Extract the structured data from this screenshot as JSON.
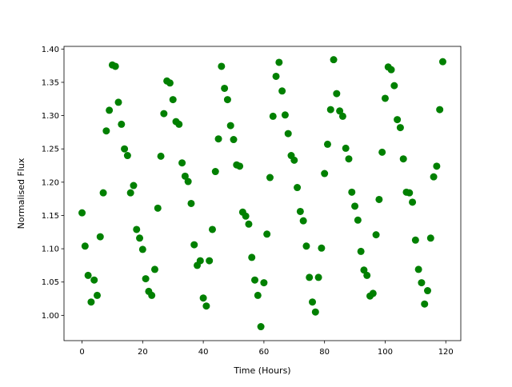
{
  "chart_data": {
    "type": "scatter",
    "xlabel": "Time (Hours)",
    "ylabel": "Normalised Flux",
    "color": "#008000",
    "grid": false,
    "x": [
      0,
      1,
      2,
      3,
      4,
      5,
      6,
      7,
      8,
      9,
      10,
      11,
      12,
      13,
      14,
      15,
      16,
      17,
      18,
      19,
      20,
      21,
      22,
      23,
      24,
      25,
      26,
      27,
      28,
      29,
      30,
      31,
      32,
      33,
      34,
      35,
      36,
      37,
      38,
      39,
      40,
      41,
      42,
      43,
      44,
      45,
      46,
      47,
      48,
      49,
      50,
      51,
      52,
      53,
      54,
      55,
      56,
      57,
      58,
      59,
      60,
      61,
      62,
      63,
      64,
      65,
      66,
      67,
      68,
      69,
      70,
      71,
      72,
      73,
      74,
      75,
      76,
      77,
      78,
      79,
      80,
      81,
      82,
      83,
      84,
      85,
      86,
      87,
      88,
      89,
      90,
      91,
      92,
      93,
      94,
      95,
      96,
      97,
      98,
      99,
      100,
      101,
      102,
      103,
      104,
      105,
      106,
      107,
      108,
      109,
      110,
      111,
      112,
      113,
      114,
      115,
      116,
      117,
      118,
      119
    ],
    "values": [
      1.154,
      1.104,
      1.06,
      1.02,
      1.053,
      1.03,
      1.118,
      1.184,
      1.277,
      1.308,
      1.376,
      1.374,
      1.32,
      1.287,
      1.25,
      1.24,
      1.184,
      1.195,
      1.129,
      1.116,
      1.099,
      1.055,
      1.036,
      1.03,
      1.069,
      1.161,
      1.239,
      1.303,
      1.352,
      1.349,
      1.324,
      1.291,
      1.287,
      1.229,
      1.209,
      1.201,
      1.168,
      1.106,
      1.075,
      1.082,
      1.026,
      1.014,
      1.082,
      1.129,
      1.216,
      1.265,
      1.374,
      1.341,
      1.324,
      1.285,
      1.264,
      1.226,
      1.224,
      1.155,
      1.149,
      1.137,
      1.087,
      1.053,
      1.03,
      0.983,
      1.049,
      1.122,
      1.207,
      1.299,
      1.359,
      1.38,
      1.337,
      1.301,
      1.273,
      1.24,
      1.233,
      1.192,
      1.156,
      1.142,
      1.104,
      1.057,
      1.02,
      1.005,
      1.057,
      1.101,
      1.213,
      1.257,
      1.309,
      1.384,
      1.333,
      1.307,
      1.299,
      1.251,
      1.235,
      1.185,
      1.164,
      1.143,
      1.096,
      1.068,
      1.06,
      1.029,
      1.033,
      1.121,
      1.174,
      1.245,
      1.326,
      1.373,
      1.369,
      1.345,
      1.294,
      1.282,
      1.235,
      1.185,
      1.184,
      1.17,
      1.113,
      1.069,
      1.049,
      1.017,
      1.037,
      1.116,
      1.208,
      1.224,
      1.309,
      1.381
    ],
    "xlim": [
      -5.95,
      124.95
    ],
    "ylim": [
      0.962,
      1.404
    ],
    "xticks": [
      0,
      20,
      40,
      60,
      80,
      100,
      120
    ],
    "yticks": [
      {
        "value": 1.0,
        "label": "1.00"
      },
      1.05,
      {
        "value": 1.1,
        "label": "1.10"
      },
      1.15,
      {
        "value": 1.2,
        "label": "1.20"
      },
      1.25,
      {
        "value": 1.3,
        "label": "1.30"
      },
      1.35,
      {
        "value": 1.4,
        "label": "1.40"
      }
    ]
  }
}
